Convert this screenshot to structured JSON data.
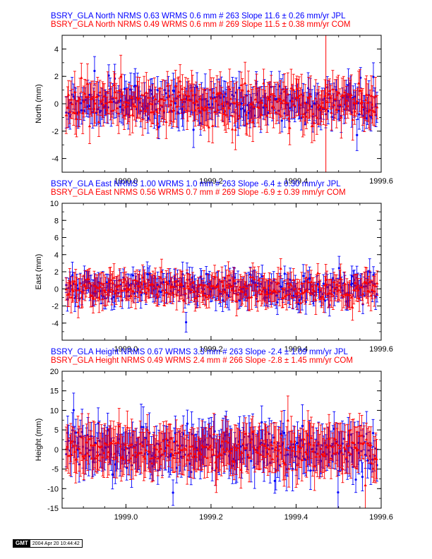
{
  "colors": {
    "blue": "#0000ff",
    "red": "#ff0000",
    "axis": "#000000"
  },
  "footer": {
    "logo": "GMT",
    "timestamp": "2004 Apr 20 10:44:42"
  },
  "chart_data": [
    {
      "type": "scatter",
      "ylabel": "North (mm)",
      "xlim": [
        1998.85,
        1999.6
      ],
      "ylim": [
        -5,
        5
      ],
      "xticks": [
        1999.0,
        1999.2,
        1999.4,
        1999.6
      ],
      "xtick_labels": [
        "1999.0",
        "1999.2",
        "1999.4",
        "1999.6"
      ],
      "yticks": [
        -4,
        -2,
        0,
        2,
        4
      ],
      "ytick_labels": [
        "-4",
        "-2",
        "0",
        "2",
        "4"
      ],
      "vertical_line_x": 1999.47,
      "series": [
        {
          "name": "BSRY_GLA North NRMS 0.63 WRMS  0.6 mm # 263 Slope   11.6 ±  0.26 mm/yr JPL",
          "color": "blue",
          "marker": "circle",
          "count": 263,
          "amplitude": 0.9,
          "error": 1.0,
          "seed": 11
        },
        {
          "name": "BSRY_GLA North NRMS 0.49 WRMS  0.6 mm # 269 Slope   11.5 ±  0.38 mm/yr COM",
          "color": "red",
          "marker": "triangle",
          "count": 269,
          "amplitude": 0.85,
          "error": 1.2,
          "seed": 23
        }
      ]
    },
    {
      "type": "scatter",
      "ylabel": "East (mm)",
      "xlim": [
        1998.85,
        1999.6
      ],
      "ylim": [
        -6,
        10
      ],
      "xticks": [
        1999.0,
        1999.2,
        1999.4,
        1999.6
      ],
      "xtick_labels": [
        "1999.0",
        "1999.2",
        "1999.4",
        "1999.6"
      ],
      "yticks": [
        -4,
        -2,
        0,
        2,
        4,
        6,
        8,
        10
      ],
      "ytick_labels": [
        "-4",
        "-2",
        "0",
        "2",
        "4",
        "6",
        "8",
        "10"
      ],
      "series": [
        {
          "name": "BSRY_GLA East NRMS 1.00 WRMS  1.0 mm # 263 Slope   -6.4 ±  0.30 mm/yr JPL",
          "color": "blue",
          "marker": "circle",
          "count": 263,
          "amplitude": 1.1,
          "error": 1.2,
          "seed": 37
        },
        {
          "name": "BSRY_GLA East NRMS 0.56 WRMS  0.7 mm # 269 Slope   -6.9 ±  0.39 mm/yr COM",
          "color": "red",
          "marker": "triangle",
          "count": 269,
          "amplitude": 0.9,
          "error": 1.4,
          "seed": 51
        }
      ]
    },
    {
      "type": "scatter",
      "ylabel": "Height (mm)",
      "xlim": [
        1998.85,
        1999.6
      ],
      "ylim": [
        -15,
        20
      ],
      "xticks": [
        1999.0,
        1999.2,
        1999.4,
        1999.6
      ],
      "xtick_labels": [
        "1999.0",
        "1999.2",
        "1999.4",
        "1999.6"
      ],
      "yticks": [
        -15,
        -10,
        -5,
        0,
        5,
        10,
        15,
        20
      ],
      "ytick_labels": [
        "-15",
        "-10",
        "-5",
        "0",
        "5",
        "10",
        "15",
        "20"
      ],
      "series": [
        {
          "name": "BSRY_GLA Height NRMS 0.67 WRMS  3.3 mm # 263 Slope   -2.4 ±  1.09 mm/yr JPL",
          "color": "blue",
          "marker": "circle",
          "count": 263,
          "amplitude": 3.3,
          "error": 4.5,
          "seed": 67
        },
        {
          "name": "BSRY_GLA Height NRMS 0.49 WRMS  2.4 mm # 266 Slope   -2.8 ±  1.45 mm/yr COM",
          "color": "red",
          "marker": "triangle",
          "count": 266,
          "amplitude": 2.6,
          "error": 5.0,
          "seed": 89
        }
      ]
    }
  ]
}
